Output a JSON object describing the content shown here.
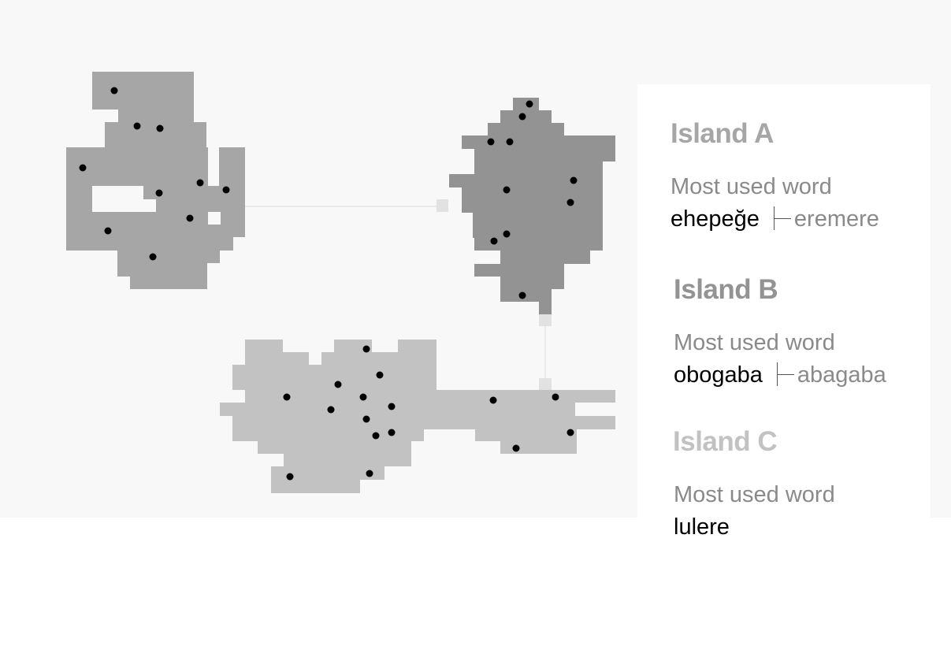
{
  "islands": [
    {
      "name": "Island A",
      "label": "Most used word",
      "word": "ehepeğe",
      "alt_word": "eremere",
      "color": "#a6a6a6",
      "title_color": "#a6a6a6"
    },
    {
      "name": "Island B",
      "label": "Most used word",
      "word": "obogaba",
      "alt_word": "abagaba",
      "color": "#939393",
      "title_color": "#939393"
    },
    {
      "name": "Island C",
      "label": "Most used word",
      "word": "lulere",
      "alt_word": "",
      "color": "#c2c2c2",
      "title_color": "#c2c2c2"
    }
  ],
  "colors": {
    "background": "#f8f8f8",
    "bridge": "#e2e2e2",
    "dot": "#000000"
  }
}
